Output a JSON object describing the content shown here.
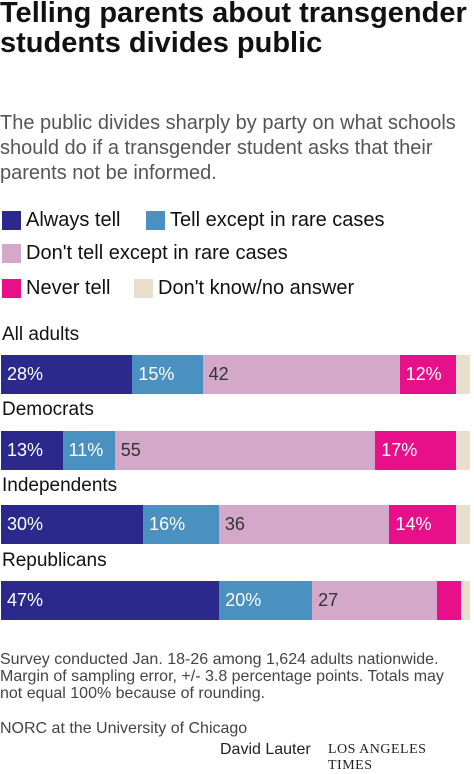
{
  "header": {
    "title": "Telling parents about transgender students divides public",
    "subtitle": "The public divides sharply by party on what schools should do if a transgender student asks that their parents not be informed."
  },
  "colors": {
    "always": "#2b2a8c",
    "rare": "#4a90c0",
    "dont": "#d4a8c8",
    "never": "#e8108a",
    "dk": "#e8e0cc"
  },
  "chart_data": {
    "type": "bar",
    "orientation": "horizontal",
    "stacked": true,
    "title": "Telling parents about transgender students divides public",
    "subtitle": "The public divides sharply by party on what schools should do if a transgender student asks that their parents not be informed.",
    "categories": [
      "All adults",
      "Democrats",
      "Independents",
      "Republicans"
    ],
    "series": [
      {
        "name": "Always tell",
        "key": "always",
        "values": [
          28,
          13,
          30,
          47
        ],
        "labels": [
          "28%",
          "13%",
          "30%",
          "47%"
        ]
      },
      {
        "name": "Tell except in rare cases",
        "key": "rare",
        "values": [
          15,
          11,
          16,
          20
        ],
        "labels": [
          "15%",
          "11%",
          "16%",
          "20%"
        ]
      },
      {
        "name": "Don't tell except in rare cases",
        "key": "dont",
        "values": [
          42,
          55,
          36,
          27
        ],
        "labels": [
          "42",
          "55",
          "36",
          "27"
        ]
      },
      {
        "name": "Never tell",
        "key": "never",
        "values": [
          12,
          17,
          14,
          5
        ],
        "labels": [
          "12%",
          "17%",
          "14%",
          ""
        ]
      },
      {
        "name": "Don't know/no answer",
        "key": "dk",
        "values": [
          3,
          3,
          3,
          2
        ],
        "labels": [
          "",
          "",
          "",
          ""
        ]
      }
    ],
    "xlim": [
      0,
      100
    ],
    "legend": "top"
  },
  "footer": {
    "notes": "Survey conducted Jan. 18-26 among 1,624 adults nationwide. Margin of sampling error, +/- 3.8 percentage points. Totals may not equal 100% because of rounding.",
    "source": "NORC at the University of Chicago",
    "byline": "David Lauter",
    "brand": "LOS ANGELES TIMES"
  }
}
